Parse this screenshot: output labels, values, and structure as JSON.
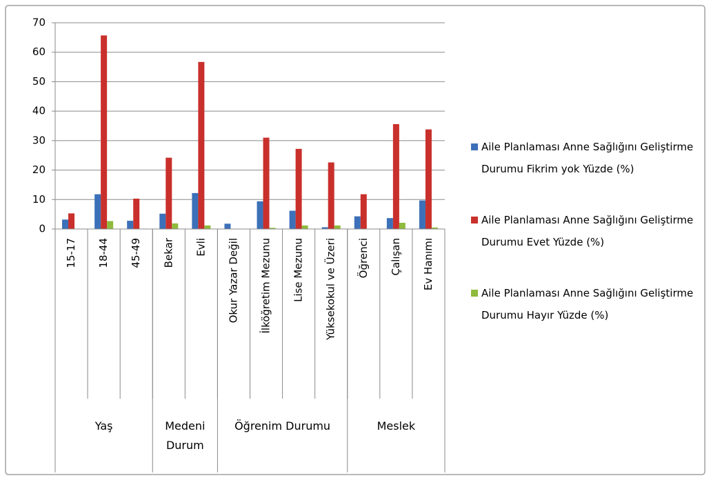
{
  "chart_data": {
    "type": "bar",
    "categories": [
      "15-17",
      "18-44",
      "45-49",
      "Bekar",
      "Evli",
      "Okur Yazar Değil",
      "İlköğretim Mezunu",
      "Lise Mezunu",
      "Yüksekokul ve Üzeri",
      "Öğrenci",
      "Çalışan",
      "Ev Hanımı"
    ],
    "groups": [
      {
        "name": "Yaş",
        "size": 3
      },
      {
        "name": "Medeni Durum",
        "size": 2
      },
      {
        "name": "Öğrenim Durumu",
        "size": 4
      },
      {
        "name": "Meslek",
        "size": 3
      }
    ],
    "series": [
      {
        "name": "Aile Planlaması Anne Sağlığını Geliştirme Durumu Fikrim yok Yüzde (%)",
        "color": "#3c70b8",
        "values": [
          3.2,
          11.8,
          2.8,
          5.2,
          12.2,
          1.8,
          9.4,
          6.2,
          0.6,
          4.3,
          3.7,
          9.7
        ]
      },
      {
        "name": "Aile Planlaması Anne Sağlığını Geliştirme Durumu Evet Yüzde (%)",
        "color": "#c9302c",
        "values": [
          5.3,
          65.7,
          10.3,
          24.2,
          56.7,
          0,
          31.0,
          27.2,
          22.6,
          11.8,
          35.6,
          33.8
        ]
      },
      {
        "name": "Aile Planlaması Anne Sağlığını Geliştirme Durumu Hayır Yüzde (%)",
        "color": "#8fba3c",
        "values": [
          0,
          2.7,
          0,
          1.9,
          1.2,
          0,
          0.4,
          1.2,
          1.2,
          0,
          2.1,
          0.5
        ]
      }
    ],
    "ylim": [
      0,
      70
    ],
    "yticks": [
      0,
      10,
      20,
      30,
      40,
      50,
      60,
      70
    ],
    "grid": true,
    "legend": "right"
  }
}
